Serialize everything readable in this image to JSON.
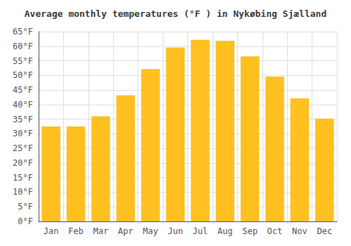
{
  "chart_data": {
    "type": "bar",
    "title": "Average monthly temperatures (°F ) in Nykøbing Sjælland",
    "categories": [
      "Jan",
      "Feb",
      "Mar",
      "Apr",
      "May",
      "Jun",
      "Jul",
      "Aug",
      "Sep",
      "Oct",
      "Nov",
      "Dec"
    ],
    "values": [
      32.5,
      32.5,
      36.0,
      43.2,
      52.2,
      59.5,
      62.2,
      61.9,
      56.5,
      49.6,
      42.1,
      35.2
    ],
    "color": "#FFC020",
    "ylim": [
      0,
      65
    ],
    "yticks": [
      {
        "value": 0,
        "label": "0°F"
      },
      {
        "value": 5,
        "label": "5°F"
      },
      {
        "value": 10,
        "label": "10°F"
      },
      {
        "value": 15,
        "label": "15°F"
      },
      {
        "value": 20,
        "label": "20°F"
      },
      {
        "value": 25,
        "label": "25°F"
      },
      {
        "value": 30,
        "label": "30°F"
      },
      {
        "value": 35,
        "label": "35°F"
      },
      {
        "value": 40,
        "label": "40°F"
      },
      {
        "value": 45,
        "label": "45°F"
      },
      {
        "value": 50,
        "label": "50°F"
      },
      {
        "value": 55,
        "label": "55°F"
      },
      {
        "value": 60,
        "label": "60°F"
      },
      {
        "value": 65,
        "label": "65°F"
      }
    ],
    "grid": true
  }
}
